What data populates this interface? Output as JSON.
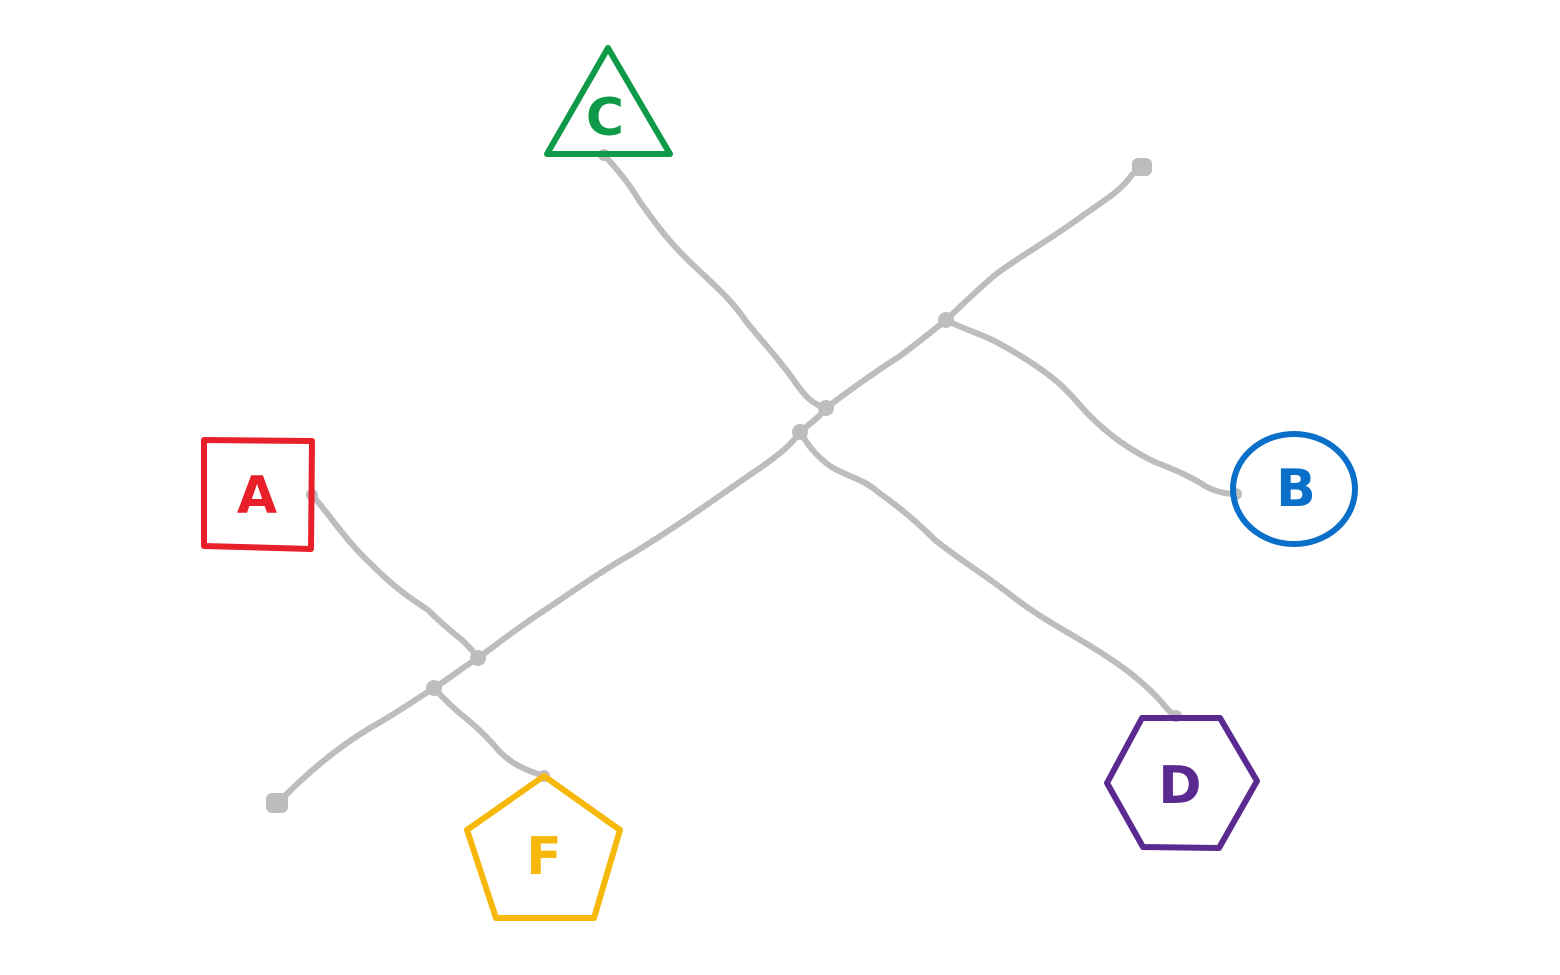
{
  "diagram": {
    "nodes": [
      {
        "id": "A",
        "label": "A",
        "shape": "square",
        "color": "#e8202a"
      },
      {
        "id": "B",
        "label": "B",
        "shape": "circle",
        "color": "#0a6fc9"
      },
      {
        "id": "C",
        "label": "C",
        "shape": "triangle",
        "color": "#0f9a4a"
      },
      {
        "id": "D",
        "label": "D",
        "shape": "hexagon",
        "color": "#5b2a91"
      },
      {
        "id": "F",
        "label": "F",
        "shape": "pentagon",
        "color": "#f7b80c"
      }
    ],
    "edge_color": "#bdbdbd",
    "edges": [
      {
        "from": "A",
        "to": "j-lower"
      },
      {
        "from": "F",
        "to": "j-lower"
      },
      {
        "from": "C",
        "to": "j-center"
      },
      {
        "from": "D",
        "to": "j-center"
      },
      {
        "from": "B",
        "to": "j-upper"
      }
    ]
  }
}
